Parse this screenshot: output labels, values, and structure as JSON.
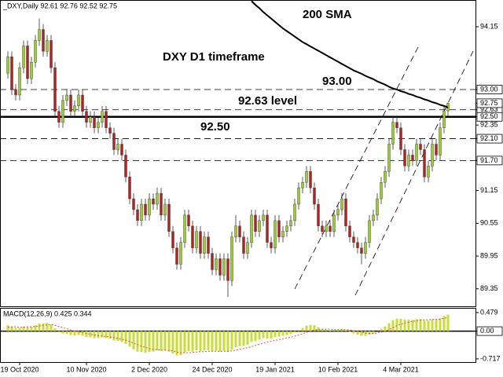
{
  "chart_data": {
    "type": "candlestick",
    "title": "_DXY,Daily 92.61 92.76 92.52 92.75",
    "annotations": [
      "200 SMA",
      "DXY D1 timeframe",
      "93.00",
      "92.63 level",
      "92.50"
    ],
    "categories": [
      null,
      null,
      null,
      "19 Oct 2020",
      null,
      null,
      null,
      null,
      null,
      null,
      null,
      null,
      null,
      null,
      null,
      null,
      null,
      null,
      null,
      null,
      "10 Nov 2020",
      null,
      null,
      null,
      null,
      null,
      null,
      null,
      null,
      null,
      null,
      null,
      null,
      null,
      null,
      null,
      "2 Dec 2020",
      null,
      null,
      null,
      null,
      null,
      null,
      null,
      null,
      null,
      null,
      null,
      null,
      null,
      null,
      null,
      "24 Dec 2020",
      null,
      null,
      null,
      null,
      null,
      null,
      null,
      null,
      null,
      null,
      null,
      null,
      null,
      null,
      null,
      "19 Jan 2021",
      null,
      null,
      null,
      null,
      null,
      null,
      null,
      null,
      null,
      null,
      null,
      null,
      null,
      null,
      null,
      "10 Feb 2021",
      null,
      null,
      null,
      null,
      null,
      null,
      null,
      null,
      null,
      null,
      null,
      null,
      null,
      null,
      null,
      "4 Mar 2021",
      null,
      null,
      null,
      null,
      null,
      null,
      null,
      null,
      null,
      null,
      null,
      null
    ],
    "open": [
      93.3,
      93.6,
      93.0,
      92.9,
      93.4,
      93.8,
      93.2,
      93.5,
      93.9,
      94.1,
      93.7,
      93.9,
      93.4,
      92.6,
      92.4,
      92.8,
      92.9,
      92.6,
      92.7,
      92.9,
      92.6,
      92.4,
      92.5,
      92.3,
      92.4,
      92.6,
      92.3,
      92.2,
      91.9,
      92.0,
      91.8,
      91.4,
      91.0,
      90.8,
      90.6,
      90.9,
      90.7,
      91.0,
      90.9,
      91.1,
      90.7,
      90.9,
      90.4,
      90.1,
      89.8,
      90.2,
      90.7,
      90.5,
      90.1,
      90.4,
      90.0,
      90.3,
      90.0,
      89.7,
      89.9,
      89.6,
      89.9,
      89.5,
      90.3,
      90.5,
      90.3,
      90.0,
      90.2,
      90.7,
      90.4,
      90.6,
      90.7,
      90.2,
      90.1,
      90.6,
      90.3,
      90.4,
      90.5,
      90.6,
      90.9,
      91.2,
      91.3,
      91.5,
      91.2,
      90.9,
      90.5,
      90.4,
      90.5,
      90.4,
      90.7,
      90.8,
      91.0,
      90.5,
      90.3,
      90.2,
      90.1,
      90.0,
      90.2,
      90.6,
      90.7,
      91.0,
      91.3,
      91.5,
      92.0,
      92.4,
      92.3,
      91.9,
      91.6,
      91.8,
      91.7,
      92.0,
      91.9,
      91.4,
      91.6,
      92.0,
      91.8,
      92.3,
      92.61
    ],
    "high": [
      93.7,
      93.7,
      93.1,
      93.5,
      93.9,
      93.9,
      93.6,
      94.0,
      94.3,
      94.2,
      94.0,
      94.0,
      93.5,
      92.7,
      92.9,
      93.0,
      93.0,
      92.8,
      93.0,
      93.0,
      92.7,
      92.6,
      92.6,
      92.5,
      92.7,
      92.7,
      92.4,
      92.3,
      92.1,
      92.1,
      91.9,
      91.5,
      91.1,
      90.9,
      91.0,
      91.0,
      91.1,
      91.1,
      91.2,
      91.2,
      91.0,
      91.0,
      90.5,
      90.2,
      90.3,
      90.8,
      90.8,
      90.6,
      90.5,
      90.5,
      90.4,
      90.4,
      90.1,
      90.0,
      90.0,
      90.0,
      90.0,
      90.4,
      90.7,
      90.6,
      90.4,
      90.3,
      90.8,
      90.8,
      90.7,
      90.8,
      90.8,
      90.3,
      90.7,
      90.7,
      90.5,
      90.6,
      90.7,
      91.0,
      91.3,
      91.4,
      91.6,
      91.6,
      91.3,
      91.0,
      90.6,
      90.6,
      90.6,
      90.8,
      90.9,
      91.1,
      91.1,
      90.6,
      90.4,
      90.3,
      90.2,
      90.3,
      90.7,
      90.8,
      91.1,
      91.4,
      91.6,
      92.1,
      92.5,
      92.5,
      92.4,
      92.0,
      91.9,
      91.9,
      92.1,
      92.1,
      92.0,
      91.7,
      92.1,
      92.1,
      92.4,
      92.7,
      92.76
    ],
    "low": [
      93.2,
      92.9,
      92.8,
      92.8,
      93.3,
      93.1,
      93.1,
      93.4,
      93.8,
      93.6,
      93.6,
      93.3,
      92.5,
      92.3,
      92.3,
      92.7,
      92.5,
      92.5,
      92.6,
      92.5,
      92.3,
      92.3,
      92.2,
      92.2,
      92.3,
      92.2,
      92.1,
      91.8,
      91.8,
      91.7,
      91.3,
      90.9,
      90.7,
      90.5,
      90.5,
      90.6,
      90.6,
      90.8,
      90.8,
      90.6,
      90.6,
      90.3,
      90.0,
      89.7,
      89.7,
      90.1,
      90.4,
      90.0,
      90.0,
      89.9,
      89.9,
      89.9,
      89.6,
      89.6,
      89.5,
      89.5,
      89.2,
      89.4,
      90.2,
      90.2,
      89.9,
      89.9,
      90.1,
      90.3,
      90.3,
      90.5,
      90.1,
      90.0,
      90.0,
      90.2,
      90.2,
      90.3,
      90.4,
      90.5,
      90.8,
      91.1,
      91.2,
      91.1,
      90.8,
      90.4,
      90.3,
      90.3,
      90.3,
      90.3,
      90.6,
      90.7,
      90.4,
      90.2,
      90.1,
      90.0,
      89.8,
      89.9,
      90.1,
      90.5,
      90.6,
      90.9,
      91.2,
      91.4,
      91.9,
      92.2,
      91.8,
      91.5,
      91.5,
      91.6,
      91.6,
      91.8,
      91.3,
      91.3,
      91.5,
      91.7,
      91.7,
      92.2,
      92.52
    ],
    "close": [
      93.6,
      93.0,
      92.9,
      93.4,
      93.8,
      93.2,
      93.5,
      93.9,
      94.1,
      93.7,
      93.9,
      93.4,
      92.6,
      92.4,
      92.8,
      92.9,
      92.6,
      92.7,
      92.9,
      92.6,
      92.4,
      92.5,
      92.3,
      92.4,
      92.6,
      92.3,
      92.2,
      91.9,
      92.0,
      91.8,
      91.4,
      91.0,
      90.8,
      90.6,
      90.9,
      90.7,
      91.0,
      90.9,
      91.1,
      90.7,
      90.9,
      90.4,
      90.1,
      89.8,
      90.2,
      90.7,
      90.5,
      90.1,
      90.4,
      90.0,
      90.3,
      90.0,
      89.7,
      89.9,
      89.6,
      89.9,
      89.5,
      90.3,
      90.5,
      90.3,
      90.0,
      90.2,
      90.7,
      90.4,
      90.6,
      90.7,
      90.2,
      90.1,
      90.6,
      90.3,
      90.4,
      90.5,
      90.6,
      90.9,
      91.2,
      91.3,
      91.5,
      91.2,
      90.9,
      90.5,
      90.4,
      90.5,
      90.4,
      90.7,
      90.8,
      91.0,
      90.5,
      90.3,
      90.2,
      90.1,
      90.0,
      90.2,
      90.6,
      90.7,
      91.0,
      91.3,
      91.5,
      92.0,
      92.4,
      92.3,
      91.9,
      91.6,
      91.8,
      91.7,
      92.0,
      91.9,
      91.4,
      91.6,
      92.0,
      91.8,
      92.3,
      92.61,
      92.75
    ],
    "up_color": "#9acd32",
    "down_color": "#b22222",
    "sma_values": [
      null,
      null,
      null,
      null,
      null,
      null,
      null,
      null,
      null,
      null,
      null,
      null,
      null,
      null,
      null,
      null,
      null,
      null,
      null,
      null,
      null,
      null,
      null,
      null,
      null,
      null,
      null,
      null,
      null,
      null,
      null,
      null,
      null,
      null,
      null,
      null,
      null,
      null,
      null,
      null,
      null,
      null,
      null,
      null,
      null,
      null,
      null,
      null,
      null,
      null,
      null,
      null,
      null,
      null,
      null,
      null,
      null,
      null,
      null,
      null,
      null,
      null,
      94.62,
      94.55,
      94.49,
      94.42,
      94.36,
      94.3,
      94.24,
      94.18,
      94.12,
      94.07,
      94.02,
      93.97,
      93.92,
      93.87,
      93.83,
      93.79,
      93.75,
      93.71,
      93.67,
      93.63,
      93.59,
      93.55,
      93.51,
      93.47,
      93.43,
      93.39,
      93.35,
      93.32,
      93.29,
      93.25,
      93.22,
      93.19,
      93.15,
      93.12,
      93.09,
      93.05,
      93.02,
      93.0,
      92.97,
      92.95,
      92.92,
      92.9,
      92.87,
      92.85,
      92.82,
      92.8,
      92.77,
      92.75,
      92.72,
      92.7,
      92.67
    ],
    "sma_color": "#000000",
    "ylim": [
      89.03,
      94.64
    ],
    "yticks": [
      94.15,
      92.35,
      91.15,
      90.55,
      89.95,
      89.35
    ],
    "levels": [
      {
        "value": 93,
        "label": "93.00",
        "style": "dashed"
      },
      {
        "value": 92.63,
        "label": "92.63",
        "style": "dashed"
      },
      {
        "value": 92.5,
        "label": "92.50",
        "style": "solid"
      },
      {
        "value": 92.1,
        "label": "92.10",
        "style": "dashed"
      },
      {
        "value": 91.7,
        "label": "91.70",
        "style": "dashed"
      }
    ],
    "last_price": {
      "value": 92.75,
      "label": "92.75"
    },
    "macd": {
      "type": "bar",
      "title": "MACD(12,26,9) 0.425 0.344",
      "color": "#c8dc3c",
      "signal_color": "#e0533a",
      "values": [
        0.15,
        0.12,
        0.08,
        0.08,
        0.12,
        0.1,
        0.11,
        0.15,
        0.2,
        0.2,
        0.21,
        0.17,
        0.07,
        -0.03,
        -0.06,
        -0.07,
        -0.1,
        -0.11,
        -0.1,
        -0.12,
        -0.15,
        -0.16,
        -0.18,
        -0.18,
        -0.16,
        -0.18,
        -0.2,
        -0.24,
        -0.25,
        -0.28,
        -0.33,
        -0.4,
        -0.47,
        -0.53,
        -0.54,
        -0.56,
        -0.54,
        -0.53,
        -0.5,
        -0.51,
        -0.5,
        -0.53,
        -0.58,
        -0.63,
        -0.62,
        -0.55,
        -0.52,
        -0.53,
        -0.5,
        -0.52,
        -0.5,
        -0.5,
        -0.52,
        -0.51,
        -0.53,
        -0.51,
        -0.54,
        -0.48,
        -0.42,
        -0.39,
        -0.38,
        -0.35,
        -0.28,
        -0.26,
        -0.22,
        -0.18,
        -0.19,
        -0.19,
        -0.15,
        -0.14,
        -0.12,
        -0.1,
        -0.07,
        -0.03,
        0.03,
        0.08,
        0.14,
        0.16,
        0.15,
        0.1,
        0.06,
        0.04,
        0.02,
        0.03,
        0.04,
        0.06,
        0.02,
        -0.02,
        -0.06,
        -0.09,
        -0.12,
        -0.12,
        -0.09,
        -0.06,
        0.0,
        0.06,
        0.12,
        0.2,
        0.28,
        0.32,
        0.32,
        0.3,
        0.3,
        0.29,
        0.31,
        0.31,
        0.27,
        0.27,
        0.3,
        0.29,
        0.33,
        0.39,
        0.425
      ],
      "signal": [
        0.1,
        0.11,
        0.11,
        0.1,
        0.1,
        0.11,
        0.11,
        0.12,
        0.13,
        0.15,
        0.16,
        0.17,
        0.15,
        0.12,
        0.09,
        0.06,
        0.03,
        0.0,
        -0.02,
        -0.04,
        -0.06,
        -0.08,
        -0.1,
        -0.12,
        -0.13,
        -0.14,
        -0.15,
        -0.17,
        -0.19,
        -0.21,
        -0.23,
        -0.27,
        -0.31,
        -0.35,
        -0.39,
        -0.42,
        -0.45,
        -0.47,
        -0.48,
        -0.49,
        -0.49,
        -0.5,
        -0.51,
        -0.54,
        -0.56,
        -0.56,
        -0.56,
        -0.55,
        -0.54,
        -0.53,
        -0.53,
        -0.52,
        -0.52,
        -0.52,
        -0.52,
        -0.52,
        -0.52,
        -0.51,
        -0.49,
        -0.47,
        -0.45,
        -0.43,
        -0.4,
        -0.37,
        -0.34,
        -0.31,
        -0.28,
        -0.26,
        -0.24,
        -0.22,
        -0.2,
        -0.18,
        -0.16,
        -0.13,
        -0.1,
        -0.07,
        -0.03,
        0.0,
        0.03,
        0.04,
        0.05,
        0.05,
        0.05,
        0.04,
        0.04,
        0.04,
        0.04,
        0.03,
        0.01,
        -0.01,
        -0.03,
        -0.05,
        -0.06,
        -0.06,
        -0.05,
        -0.03,
        0.0,
        0.04,
        0.09,
        0.14,
        0.18,
        0.21,
        0.23,
        0.25,
        0.27,
        0.28,
        0.29,
        0.29,
        0.3,
        0.3,
        0.31,
        0.33,
        0.344
      ],
      "ylim": [
        -0.8,
        0.6
      ],
      "yticks": [
        0.479,
        {
          "value": 0,
          "label": "0.00"
        },
        -0.717
      ]
    }
  }
}
